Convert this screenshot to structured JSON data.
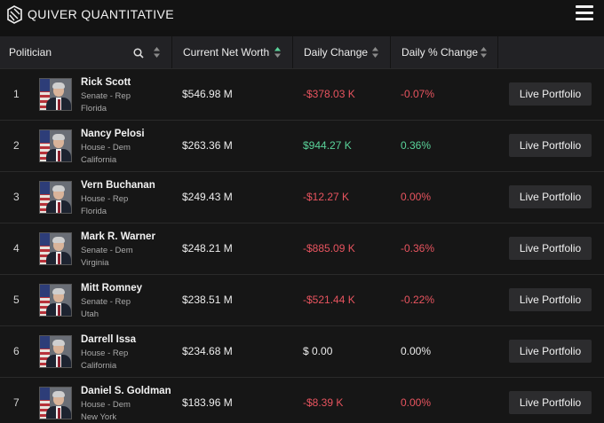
{
  "app": {
    "title": "QUIVER QUANTITATIVE"
  },
  "colors": {
    "negative": "#e8545f",
    "positive": "#5ad39a",
    "neutral": "#ececec",
    "background": "#121212"
  },
  "header": {
    "politician": "Politician",
    "net_worth": "Current Net Worth",
    "daily_change": "Daily Change",
    "daily_pct_change": "Daily % Change"
  },
  "rows": [
    {
      "rank": "1",
      "name": "Rick Scott",
      "chamber": "Senate - Rep",
      "state": "Florida",
      "net_worth": "$546.98 M",
      "change": "-$378.03 K",
      "pct": "-0.07%",
      "change_dir": "neg",
      "pct_dir": "neg",
      "button": "Live Portfolio"
    },
    {
      "rank": "2",
      "name": "Nancy Pelosi",
      "chamber": "House - Dem",
      "state": "California",
      "net_worth": "$263.36 M",
      "change": "$944.27 K",
      "pct": "0.36%",
      "change_dir": "pos",
      "pct_dir": "pos",
      "button": "Live Portfolio"
    },
    {
      "rank": "3",
      "name": "Vern Buchanan",
      "chamber": "House - Rep",
      "state": "Florida",
      "net_worth": "$249.43 M",
      "change": "-$12.27 K",
      "pct": "0.00%",
      "change_dir": "neg",
      "pct_dir": "neg",
      "button": "Live Portfolio"
    },
    {
      "rank": "4",
      "name": "Mark R. Warner",
      "chamber": "Senate - Dem",
      "state": "Virginia",
      "net_worth": "$248.21 M",
      "change": "-$885.09 K",
      "pct": "-0.36%",
      "change_dir": "neg",
      "pct_dir": "neg",
      "button": "Live Portfolio"
    },
    {
      "rank": "5",
      "name": "Mitt Romney",
      "chamber": "Senate - Rep",
      "state": "Utah",
      "net_worth": "$238.51 M",
      "change": "-$521.44 K",
      "pct": "-0.22%",
      "change_dir": "neg",
      "pct_dir": "neg",
      "button": "Live Portfolio"
    },
    {
      "rank": "6",
      "name": "Darrell Issa",
      "chamber": "House - Rep",
      "state": "California",
      "net_worth": "$234.68 M",
      "change": "$ 0.00",
      "pct": "0.00%",
      "change_dir": "neu",
      "pct_dir": "neu",
      "button": "Live Portfolio"
    },
    {
      "rank": "7",
      "name": "Daniel S. Goldman",
      "chamber": "House - Dem",
      "state": "New York",
      "net_worth": "$183.96 M",
      "change": "-$8.39 K",
      "pct": "0.00%",
      "change_dir": "neg",
      "pct_dir": "neg",
      "button": "Live Portfolio"
    }
  ]
}
